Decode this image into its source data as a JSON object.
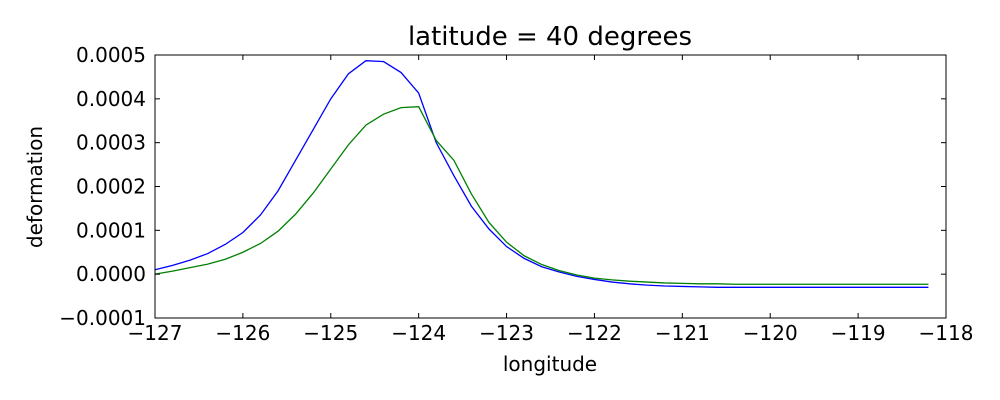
{
  "chart_data": {
    "type": "line",
    "title": "latitude = 40 degrees",
    "xlabel": "longitude",
    "ylabel": "deformation",
    "xlim": [
      -127,
      -118
    ],
    "ylim": [
      -0.0001,
      0.0005
    ],
    "xticks": [
      -127,
      -126,
      -125,
      -124,
      -123,
      -122,
      -121,
      -120,
      -119,
      -118
    ],
    "xtick_labels": [
      "−127",
      "−126",
      "−125",
      "−124",
      "−123",
      "−122",
      "−121",
      "−120",
      "−119",
      "−118"
    ],
    "yticks": [
      -0.0001,
      0.0,
      0.0001,
      0.0002,
      0.0003,
      0.0004,
      0.0005
    ],
    "ytick_labels": [
      "−0.0001",
      "0.0000",
      "0.0001",
      "0.0002",
      "0.0003",
      "0.0004",
      "0.0005"
    ],
    "grid": false,
    "series": [
      {
        "color": "#0000ff",
        "x": [
          -127.0,
          -126.8,
          -126.6,
          -126.4,
          -126.2,
          -126.0,
          -125.8,
          -125.6,
          -125.4,
          -125.2,
          -125.0,
          -124.8,
          -124.6,
          -124.4,
          -124.2,
          -124.0,
          -123.8,
          -123.6,
          -123.4,
          -123.2,
          -123.0,
          -122.8,
          -122.6,
          -122.4,
          -122.2,
          -122.0,
          -121.8,
          -121.6,
          -121.4,
          -121.2,
          -121.0,
          -120.8,
          -120.6,
          -120.4,
          -120.2,
          -120.0,
          -119.8,
          -119.6,
          -119.4,
          -119.2,
          -119.0,
          -118.8,
          -118.6,
          -118.4,
          -118.2
        ],
        "values": [
          1e-05,
          2e-05,
          3.2e-05,
          4.7e-05,
          6.8e-05,
          9.5e-05,
          0.000135,
          0.00019,
          0.00026,
          0.00033,
          0.0004,
          0.000457,
          0.000487,
          0.000485,
          0.00046,
          0.000413,
          0.0003,
          0.000225,
          0.000155,
          0.000103,
          6.3e-05,
          3.6e-05,
          1.7e-05,
          5e-06,
          -5e-06,
          -1.2e-05,
          -1.8e-05,
          -2.2e-05,
          -2.5e-05,
          -2.7e-05,
          -2.8e-05,
          -2.9e-05,
          -3e-05,
          -3e-05,
          -3e-05,
          -3e-05,
          -3e-05,
          -3e-05,
          -3e-05,
          -3e-05,
          -3e-05,
          -3e-05,
          -3e-05,
          -3e-05,
          -3e-05
        ]
      },
      {
        "color": "#008000",
        "x": [
          -127.0,
          -126.8,
          -126.6,
          -126.4,
          -126.2,
          -126.0,
          -125.8,
          -125.6,
          -125.4,
          -125.2,
          -125.0,
          -124.8,
          -124.6,
          -124.4,
          -124.2,
          -124.0,
          -123.8,
          -123.6,
          -123.4,
          -123.2,
          -123.0,
          -122.8,
          -122.6,
          -122.4,
          -122.2,
          -122.0,
          -121.8,
          -121.6,
          -121.4,
          -121.2,
          -121.0,
          -120.8,
          -120.6,
          -120.4,
          -120.2,
          -120.0,
          -119.8,
          -119.6,
          -119.4,
          -119.2,
          -119.0,
          -118.8,
          -118.6,
          -118.4,
          -118.2
        ],
        "values": [
          0.0,
          7e-06,
          1.5e-05,
          2.3e-05,
          3.4e-05,
          5e-05,
          7e-05,
          9.8e-05,
          0.000137,
          0.000185,
          0.00024,
          0.000295,
          0.00034,
          0.000365,
          0.00038,
          0.000382,
          0.000305,
          0.00026,
          0.000183,
          0.000118,
          7.3e-05,
          4.2e-05,
          2.2e-05,
          8e-06,
          -2e-06,
          -9e-06,
          -1.3e-05,
          -1.6e-05,
          -1.8e-05,
          -2e-05,
          -2.1e-05,
          -2.2e-05,
          -2.2e-05,
          -2.3e-05,
          -2.3e-05,
          -2.3e-05,
          -2.3e-05,
          -2.3e-05,
          -2.3e-05,
          -2.3e-05,
          -2.3e-05,
          -2.3e-05,
          -2.3e-05,
          -2.3e-05,
          -2.3e-05
        ]
      }
    ]
  }
}
